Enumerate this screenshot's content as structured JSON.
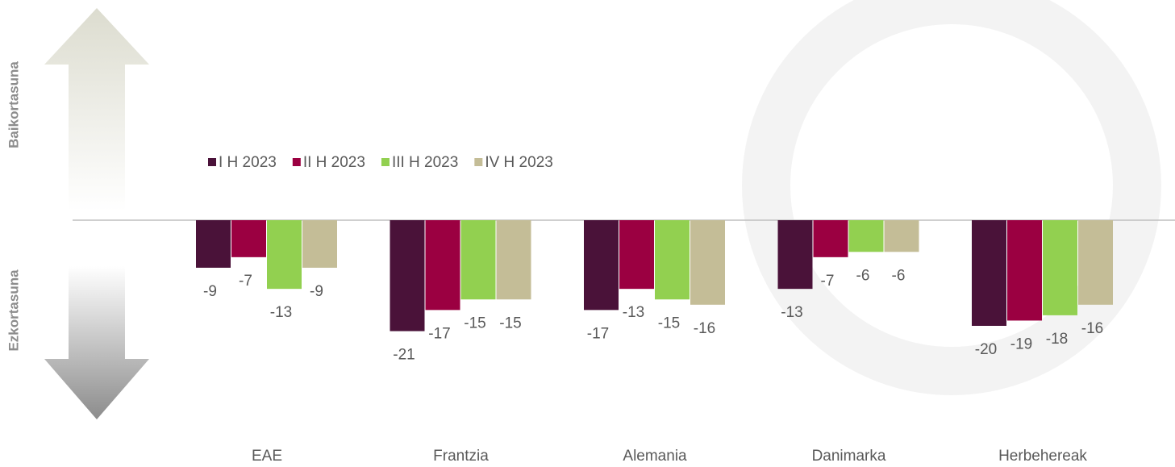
{
  "chart_data": {
    "type": "bar",
    "side_labels": {
      "positive": "Baikortasuna",
      "negative": "Ezkortasuna"
    },
    "categories": [
      "EAE",
      "Frantzia",
      "Alemania",
      "Danimarka",
      "Herbehereak"
    ],
    "series": [
      {
        "name": "I H 2023",
        "color": "#4a1239",
        "values": [
          -9,
          -21,
          -17,
          -13,
          -20
        ]
      },
      {
        "name": "II H 2023",
        "color": "#9b0041",
        "values": [
          -7,
          -17,
          -13,
          -7,
          -19
        ]
      },
      {
        "name": "III H 2023",
        "color": "#92d050",
        "values": [
          -13,
          -15,
          -15,
          -6,
          -18
        ]
      },
      {
        "name": "IV H 2023",
        "color": "#c4bd97",
        "values": [
          -9,
          -15,
          -16,
          -6,
          -16
        ]
      }
    ],
    "legend": "top-left"
  }
}
